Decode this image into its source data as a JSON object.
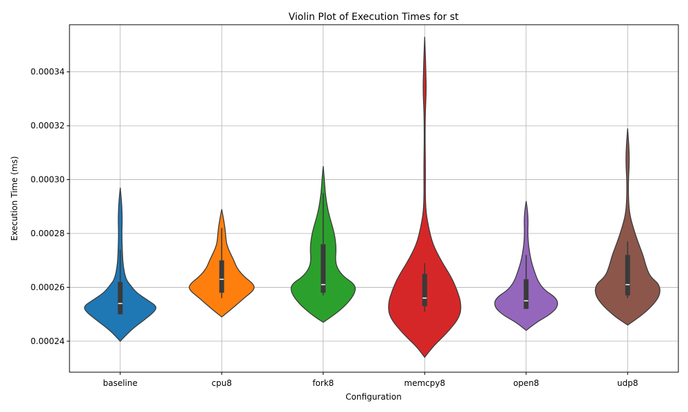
{
  "chart_data": {
    "type": "violin",
    "title": "Violin Plot of Execution Times for st",
    "xlabel": "Configuration",
    "ylabel": "Execution Time (ms)",
    "ylim": [
      0.0002285,
      0.0003575
    ],
    "yticks": [
      "0.00024",
      "0.00026",
      "0.00028",
      "0.00030",
      "0.00032",
      "0.00034"
    ],
    "ytick_values": [
      0.00024,
      0.00026,
      0.00028,
      0.0003,
      0.00032,
      0.00034
    ],
    "grid": true,
    "categories": [
      "baseline",
      "cpu8",
      "fork8",
      "memcpy8",
      "open8",
      "udp8"
    ],
    "series": [
      {
        "category": "baseline",
        "color": "#1f77b4",
        "min": 0.00024,
        "max": 0.000297,
        "q1": 0.00025,
        "median": 0.000254,
        "q3": 0.000262,
        "whisker_low": 0.00025,
        "whisker_high": 0.000274,
        "density": [
          [
            0.00024,
            0.0
          ],
          [
            0.000244,
            0.25
          ],
          [
            0.000248,
            0.6
          ],
          [
            0.000251,
            0.85
          ],
          [
            0.000253,
            0.9
          ],
          [
            0.000255,
            0.7
          ],
          [
            0.000258,
            0.4
          ],
          [
            0.000261,
            0.24
          ],
          [
            0.000263,
            0.14
          ],
          [
            0.000268,
            0.07
          ],
          [
            0.000274,
            0.05
          ],
          [
            0.00028,
            0.04
          ],
          [
            0.000285,
            0.05
          ],
          [
            0.00029,
            0.04
          ],
          [
            0.000294,
            0.02
          ],
          [
            0.000297,
            0.0
          ]
        ]
      },
      {
        "category": "cpu8",
        "color": "#ff7f0e",
        "min": 0.000249,
        "max": 0.000289,
        "q1": 0.000258,
        "median": 0.000263,
        "q3": 0.00027,
        "whisker_low": 0.000256,
        "whisker_high": 0.000282,
        "density": [
          [
            0.000249,
            0.0
          ],
          [
            0.000252,
            0.25
          ],
          [
            0.000256,
            0.55
          ],
          [
            0.000259,
            0.8
          ],
          [
            0.000261,
            0.8
          ],
          [
            0.000264,
            0.55
          ],
          [
            0.000267,
            0.38
          ],
          [
            0.00027,
            0.3
          ],
          [
            0.000273,
            0.2
          ],
          [
            0.000276,
            0.12
          ],
          [
            0.000279,
            0.1
          ],
          [
            0.000282,
            0.08
          ],
          [
            0.000285,
            0.05
          ],
          [
            0.000289,
            0.0
          ]
        ]
      },
      {
        "category": "fork8",
        "color": "#2ca02c",
        "min": 0.000247,
        "max": 0.000305,
        "q1": 0.000258,
        "median": 0.000261,
        "q3": 0.000276,
        "whisker_low": 0.000257,
        "whisker_high": 0.000295,
        "density": [
          [
            0.000247,
            0.0
          ],
          [
            0.00025,
            0.3
          ],
          [
            0.000254,
            0.6
          ],
          [
            0.000258,
            0.79
          ],
          [
            0.000261,
            0.79
          ],
          [
            0.000264,
            0.5
          ],
          [
            0.000267,
            0.35
          ],
          [
            0.00027,
            0.3
          ],
          [
            0.000274,
            0.32
          ],
          [
            0.000278,
            0.3
          ],
          [
            0.000282,
            0.24
          ],
          [
            0.000286,
            0.16
          ],
          [
            0.00029,
            0.1
          ],
          [
            0.000295,
            0.05
          ],
          [
            0.0003,
            0.03
          ],
          [
            0.000305,
            0.0
          ]
        ]
      },
      {
        "category": "memcpy8",
        "color": "#d62728",
        "min": 0.000234,
        "max": 0.000353,
        "q1": 0.000253,
        "median": 0.000256,
        "q3": 0.000265,
        "whisker_low": 0.000251,
        "whisker_high": 0.000269,
        "density": [
          [
            0.000234,
            0.0
          ],
          [
            0.000238,
            0.2
          ],
          [
            0.000243,
            0.55
          ],
          [
            0.000249,
            0.87
          ],
          [
            0.000254,
            0.9
          ],
          [
            0.000259,
            0.8
          ],
          [
            0.000264,
            0.65
          ],
          [
            0.00027,
            0.4
          ],
          [
            0.000276,
            0.2
          ],
          [
            0.000282,
            0.1
          ],
          [
            0.000288,
            0.03
          ],
          [
            0.000295,
            0.015
          ],
          [
            0.000305,
            0.02
          ],
          [
            0.000315,
            0.01
          ],
          [
            0.000325,
            0.015
          ],
          [
            0.000333,
            0.04
          ],
          [
            0.00034,
            0.03
          ],
          [
            0.000347,
            0.015
          ],
          [
            0.000353,
            0.0
          ]
        ]
      },
      {
        "category": "open8",
        "color": "#9467bd",
        "min": 0.000244,
        "max": 0.000292,
        "q1": 0.000252,
        "median": 0.000255,
        "q3": 0.000263,
        "whisker_low": 0.000252,
        "whisker_high": 0.000272,
        "density": [
          [
            0.000244,
            0.0
          ],
          [
            0.000247,
            0.25
          ],
          [
            0.00025,
            0.6
          ],
          [
            0.000253,
            0.79
          ],
          [
            0.000256,
            0.75
          ],
          [
            0.000259,
            0.45
          ],
          [
            0.000262,
            0.3
          ],
          [
            0.000266,
            0.2
          ],
          [
            0.00027,
            0.12
          ],
          [
            0.000275,
            0.06
          ],
          [
            0.00028,
            0.04
          ],
          [
            0.000285,
            0.05
          ],
          [
            0.000289,
            0.03
          ],
          [
            0.000292,
            0.0
          ]
        ]
      },
      {
        "category": "udp8",
        "color": "#8c564b",
        "min": 0.000246,
        "max": 0.000319,
        "q1": 0.000257,
        "median": 0.000261,
        "q3": 0.000272,
        "whisker_low": 0.000256,
        "whisker_high": 0.000277,
        "density": [
          [
            0.000246,
            0.0
          ],
          [
            0.000249,
            0.3
          ],
          [
            0.000253,
            0.6
          ],
          [
            0.000257,
            0.8
          ],
          [
            0.000261,
            0.79
          ],
          [
            0.000264,
            0.55
          ],
          [
            0.000268,
            0.45
          ],
          [
            0.000272,
            0.38
          ],
          [
            0.000277,
            0.25
          ],
          [
            0.000282,
            0.14
          ],
          [
            0.000287,
            0.05
          ],
          [
            0.000293,
            0.02
          ],
          [
            0.0003,
            0.02
          ],
          [
            0.000305,
            0.04
          ],
          [
            0.00031,
            0.04
          ],
          [
            0.000315,
            0.02
          ],
          [
            0.000319,
            0.0
          ]
        ]
      }
    ]
  }
}
